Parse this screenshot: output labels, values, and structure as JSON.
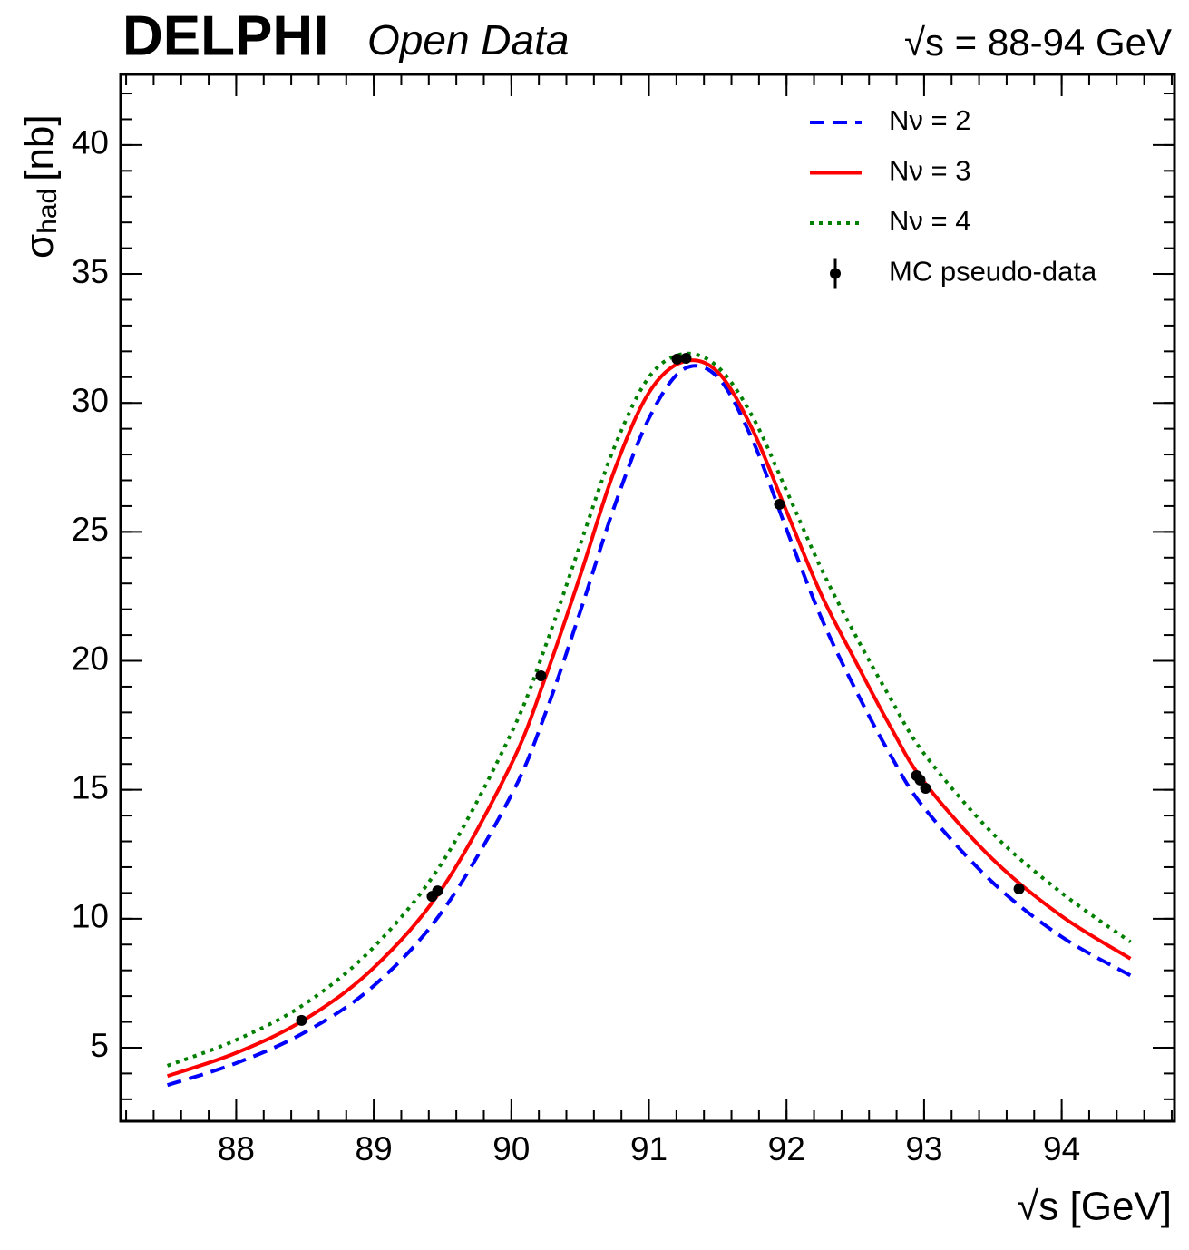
{
  "chart_data": {
    "type": "line",
    "title": "DELPHI",
    "subtitle": "Open Data",
    "annotation": "√s = 88-94 GeV",
    "xlabel": "√s [GeV]",
    "ylabel": {
      "symbol": "σ",
      "subscript": "had",
      "unit": "[nb]"
    },
    "x": [
      87.5,
      88.0,
      88.5,
      89.0,
      89.5,
      90.0,
      90.25,
      90.5,
      90.75,
      91.0,
      91.25,
      91.5,
      91.75,
      92.0,
      92.25,
      92.5,
      92.75,
      93.0,
      93.5,
      94.0,
      94.5
    ],
    "series": [
      {
        "name": "Nν = 2",
        "color": "#0000ff",
        "dash": "dashed",
        "values": [
          3.55,
          4.4,
          5.6,
          7.4,
          10.3,
          14.8,
          18.0,
          21.9,
          26.0,
          29.4,
          31.3,
          31.0,
          28.6,
          25.1,
          21.7,
          18.9,
          16.4,
          14.3,
          11.4,
          9.3,
          7.8
        ]
      },
      {
        "name": "Nν = 3",
        "color": "#ff0000",
        "dash": "solid",
        "values": [
          3.9,
          4.8,
          6.1,
          8.1,
          11.2,
          16.0,
          19.4,
          23.3,
          27.4,
          30.4,
          31.6,
          31.2,
          29.0,
          25.8,
          22.6,
          20.0,
          17.5,
          15.3,
          12.3,
          10.1,
          8.45
        ]
      },
      {
        "name": "Nν = 4",
        "color": "#008000",
        "dash": "dotted",
        "values": [
          4.3,
          5.3,
          6.7,
          8.9,
          12.2,
          17.2,
          20.6,
          24.5,
          28.3,
          31.0,
          31.9,
          31.4,
          29.5,
          26.6,
          23.6,
          21.0,
          18.6,
          16.4,
          13.3,
          11.0,
          9.1
        ]
      }
    ],
    "points": {
      "name": "MC pseudo-data",
      "color": "#000000",
      "x": [
        88.475,
        89.424,
        89.464,
        90.215,
        91.204,
        91.27,
        91.949,
        92.945,
        92.971,
        93.011,
        93.69
      ],
      "values": [
        6.06,
        10.87,
        11.08,
        19.42,
        31.7,
        31.73,
        26.07,
        15.55,
        15.38,
        15.06,
        11.16
      ]
    },
    "xlim": [
      87.16,
      94.82
    ],
    "ylim": [
      2.15,
      42.74
    ],
    "xticks": [
      88,
      89,
      90,
      91,
      92,
      93,
      94
    ],
    "yticks": [
      5,
      10,
      15,
      20,
      25,
      30,
      35,
      40
    ],
    "legend": "upper right"
  }
}
